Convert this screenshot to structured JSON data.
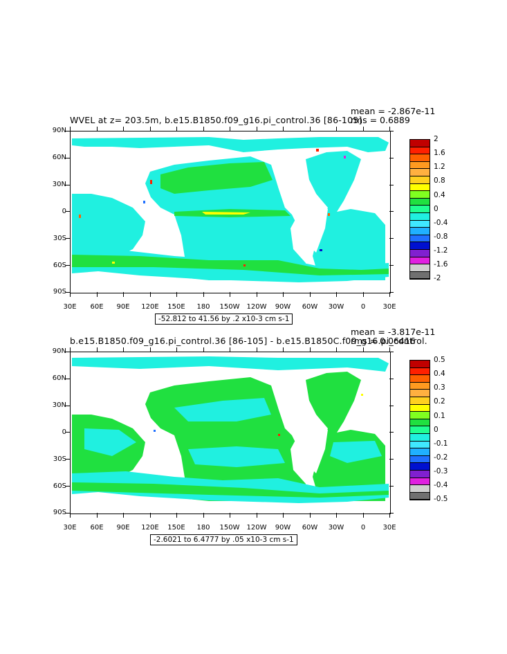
{
  "lat_labels": [
    "90N",
    "60N",
    "30N",
    "0",
    "30S",
    "60S",
    "90S"
  ],
  "lon_labels": [
    "30E",
    "60E",
    "90E",
    "120E",
    "150E",
    "180",
    "150W",
    "120W",
    "90W",
    "60W",
    "30W",
    "0",
    "30E"
  ],
  "top": {
    "title": "WVEL at z= 203.5m, b.e15.B1850.f09_g16.pi_control.36 [86-105]",
    "mean": "mean = -2.867e-11",
    "rms": "rms = 0.6889",
    "range": "-52.812 to 41.56 by .2 x10-3 cm s-1",
    "colorbar": {
      "labels": [
        "2",
        "1.6",
        "1.2",
        "0.8",
        "0.4",
        "0",
        "-0.4",
        "-0.8",
        "-1.2",
        "-1.6",
        "-2"
      ],
      "colors": [
        "#c00000",
        "#ff2000",
        "#ff6000",
        "#ff9a20",
        "#ffb040",
        "#ffd020",
        "#ffff00",
        "#80ff20",
        "#20e040",
        "#20ff90",
        "#20f0e0",
        "#40e8ff",
        "#20b0ff",
        "#2070ff",
        "#0010d0",
        "#8020d0",
        "#e020e0",
        "#d0d0d0",
        "#707070"
      ]
    }
  },
  "bottom": {
    "title": "b.e15.B1850.f09_g16.pi_control.36 [86-105] - b.e15.B1850C.f09_g16.pi_control.",
    "mean": "mean = -3.817e-11",
    "rms": "rms = 0.06416",
    "range": "-2.6021 to 6.4777 by .05 x10-3 cm s-1",
    "colorbar": {
      "labels": [
        "0.5",
        "0.4",
        "0.3",
        "0.2",
        "0.1",
        "0",
        "-0.1",
        "-0.2",
        "-0.3",
        "-0.4",
        "-0.5"
      ],
      "colors": [
        "#c00000",
        "#ff2000",
        "#ff6000",
        "#ff9a20",
        "#ffb040",
        "#ffd020",
        "#ffff00",
        "#80ff20",
        "#20e040",
        "#20ff90",
        "#20f0e0",
        "#40e8ff",
        "#20b0ff",
        "#2070ff",
        "#0010d0",
        "#8020d0",
        "#e020e0",
        "#d0d0d0",
        "#707070"
      ]
    }
  }
}
